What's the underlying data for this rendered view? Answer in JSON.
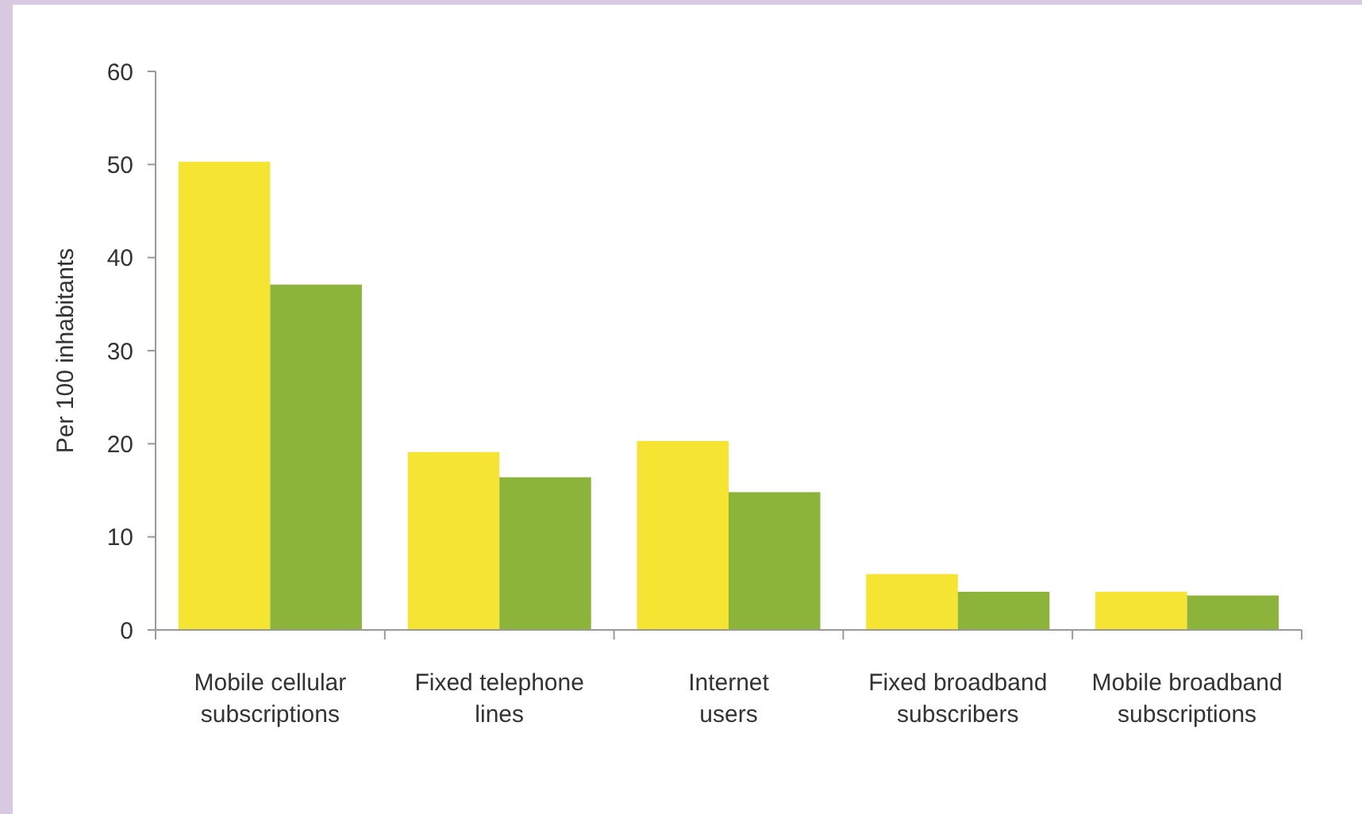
{
  "chart_data": {
    "type": "bar",
    "ylabel": "Per 100 inhabitants",
    "categories": [
      "Mobile cellular\nsubscriptions",
      "Fixed telephone\nlines",
      "Internet\nusers",
      "Fixed broadband\nsubscribers",
      "Mobile broadband\nsubscriptions"
    ],
    "series": [
      {
        "color": "#f5e431",
        "values": [
          50.3,
          19.1,
          20.3,
          6.0,
          4.1
        ]
      },
      {
        "color": "#8cb43a",
        "values": [
          37.1,
          16.4,
          14.8,
          4.1,
          3.7
        ]
      }
    ],
    "ylim": [
      0,
      60
    ],
    "yticks": [
      0,
      10,
      20,
      30,
      40,
      50,
      60
    ],
    "grid": false
  }
}
